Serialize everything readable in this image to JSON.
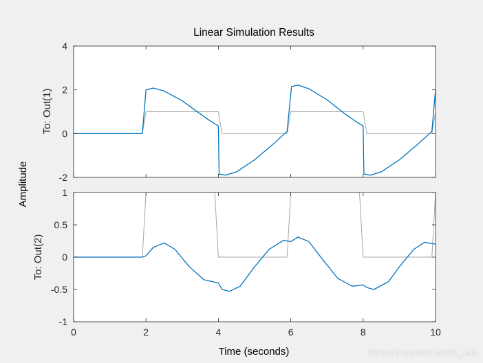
{
  "chart_data": {
    "type": "line",
    "title": "Linear Simulation Results",
    "xlabel": "Time (seconds)",
    "ylabel": "Amplitude",
    "xlim": [
      0,
      10
    ],
    "xticks": [
      "0",
      "2",
      "4",
      "6",
      "8",
      "10"
    ],
    "grid": false,
    "colors": {
      "response": "#0072bd",
      "input": "#a6a6a6"
    },
    "subplots": [
      {
        "ylabel": "To: Out(1)",
        "ylim": [
          -2,
          4
        ],
        "yticks": [
          "-2",
          "0",
          "2",
          "4"
        ],
        "series": [
          {
            "x": [
              0,
              1.9,
              2.0
            ],
            "y": [
              0,
              0,
              1
            ],
            "xs": [
              2.0,
              4.0,
              4.1,
              5.9,
              6.0,
              8.0,
              8.1,
              9.9,
              10.0
            ],
            "ys": [
              1,
              1,
              0,
              0,
              1,
              1,
              0,
              0,
              1
            ]
          },
          {
            "x": [
              0,
              1.9,
              2.0,
              2.2,
              2.5,
              3.0,
              3.5,
              3.8,
              4.0,
              4.02,
              4.2,
              4.5,
              5.0,
              5.5,
              5.9,
              6.02,
              6.2,
              6.5,
              7.0,
              7.5,
              7.8,
              8.0,
              8.02,
              8.2,
              8.5,
              9.0,
              9.5,
              9.9,
              10.0
            ],
            "y": [
              0,
              0,
              2.0,
              2.08,
              1.95,
              1.5,
              0.9,
              0.55,
              0.35,
              -1.85,
              -1.9,
              -1.75,
              -1.2,
              -0.5,
              0.1,
              2.15,
              2.22,
              2.05,
              1.55,
              0.9,
              0.55,
              0.35,
              -1.85,
              -1.9,
              -1.75,
              -1.2,
              -0.5,
              0.1,
              2.0
            ]
          }
        ]
      },
      {
        "ylabel": "To: Out(2)",
        "ylim": [
          -1,
          1
        ],
        "yticks": [
          "-1",
          "-0.5",
          "0",
          "0.5",
          "1"
        ],
        "series": [
          {
            "x": [
              0,
              1.9,
              2.0,
              3.9,
              4.0,
              5.9,
              6.0,
              7.9,
              8.0,
              9.9,
              10.0
            ],
            "y": [
              0,
              0,
              1,
              1,
              0,
              0,
              1,
              1,
              0,
              0,
              1
            ]
          },
          {
            "x": [
              0,
              1.9,
              2.0,
              2.2,
              2.5,
              2.8,
              3.2,
              3.6,
              4.0,
              4.1,
              4.3,
              4.6,
              5.0,
              5.4,
              5.8,
              6.0,
              6.2,
              6.5,
              6.9,
              7.3,
              7.7,
              8.0,
              8.1,
              8.3,
              8.7,
              9.0,
              9.4,
              9.7,
              10.0
            ],
            "y": [
              0,
              0,
              0.02,
              0.15,
              0.22,
              0.12,
              -0.15,
              -0.35,
              -0.4,
              -0.5,
              -0.53,
              -0.45,
              -0.15,
              0.12,
              0.26,
              0.24,
              0.31,
              0.24,
              -0.05,
              -0.33,
              -0.45,
              -0.43,
              -0.47,
              -0.5,
              -0.38,
              -0.15,
              0.12,
              0.23,
              0.2
            ]
          }
        ]
      }
    ]
  },
  "watermark": "https://blog.csdn.net/jk_101"
}
